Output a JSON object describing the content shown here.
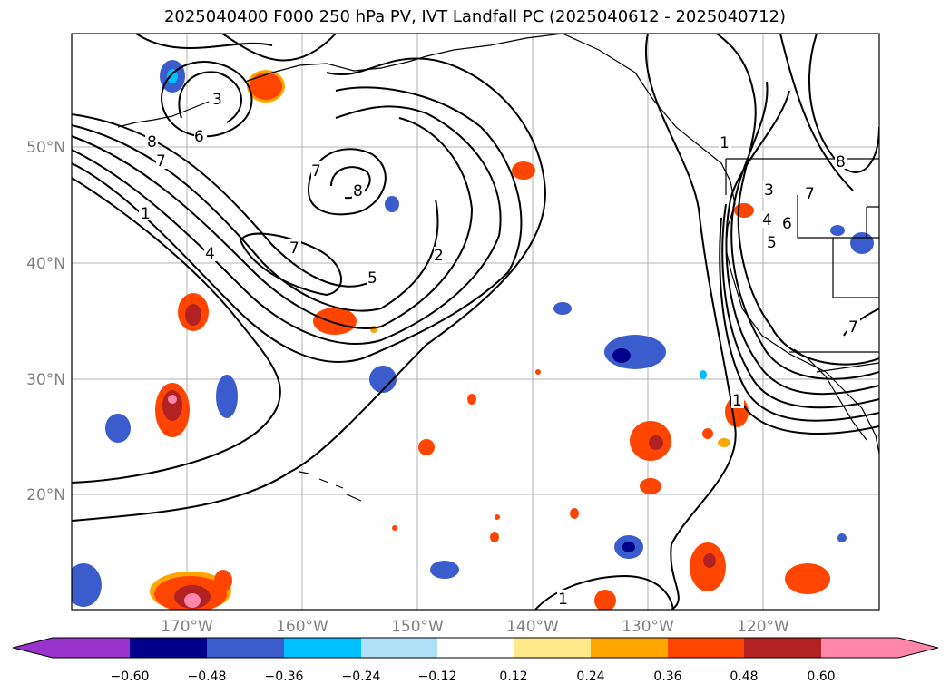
{
  "title": "2025040400 F000 250 hPa PV, IVT Landfall PC (2025040612 - 2025040712)",
  "map": {
    "lat_labels": [
      "50°N",
      "40°N",
      "30°N",
      "20°N"
    ],
    "lon_labels": [
      "170°W",
      "160°W",
      "150°W",
      "140°W",
      "130°W",
      "120°W"
    ],
    "contour_labels": [
      "8",
      "7",
      "6",
      "3",
      "1",
      "4",
      "7",
      "8",
      "7",
      "5",
      "2",
      "1",
      "1",
      "3",
      "4",
      "5",
      "6",
      "7",
      "8",
      "7",
      "1"
    ]
  },
  "colorbar": {
    "tick_labels": [
      "−0.60",
      "−0.48",
      "−0.36",
      "−0.24",
      "−0.12",
      "0.12",
      "0.24",
      "0.36",
      "0.48",
      "0.60"
    ],
    "colors": [
      "#9932cc",
      "#00008b",
      "#3a5ccc",
      "#00bfff",
      "#b0e0f8",
      "#ffffff",
      "#ffe98a",
      "#ffa500",
      "#ff4500",
      "#b22222",
      "#ff85aa"
    ]
  }
}
